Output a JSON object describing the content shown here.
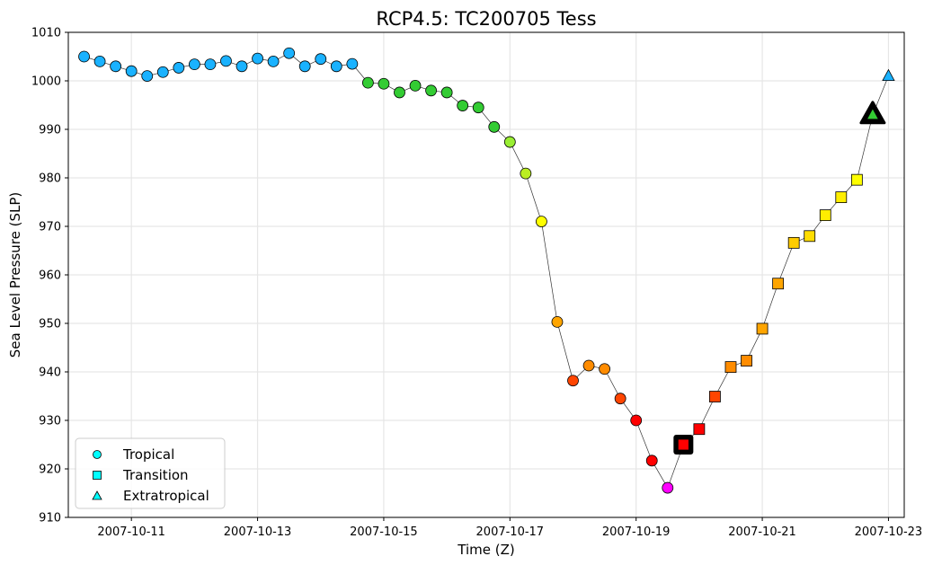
{
  "chart_data": {
    "type": "scatter",
    "title": "RCP4.5: TC200705 Tess",
    "xlabel": "Time (Z)",
    "ylabel": "Sea Level Pressure (SLP)",
    "ylim": [
      910,
      1010
    ],
    "xlim": [
      "2007-10-10 00:00",
      "2007-10-23 06:00"
    ],
    "yticks": [
      910,
      920,
      930,
      940,
      950,
      960,
      970,
      980,
      990,
      1000,
      1010
    ],
    "xticks": [
      "2007-10-11",
      "2007-10-13",
      "2007-10-15",
      "2007-10-17",
      "2007-10-19",
      "2007-10-21",
      "2007-10-23"
    ],
    "grid": true,
    "legend_position": "lower-left",
    "legend": [
      {
        "label": "Tropical",
        "marker": "circle",
        "color": "#00ffff"
      },
      {
        "label": "Transition",
        "marker": "square",
        "color": "#00ffff"
      },
      {
        "label": "Extratropical",
        "marker": "triangle",
        "color": "#00ffff"
      }
    ],
    "points": [
      {
        "t": "2007-10-10 06:00",
        "slp": 1005.0,
        "marker": "circle",
        "color": "#1ab2ff"
      },
      {
        "t": "2007-10-10 12:00",
        "slp": 1004.0,
        "marker": "circle",
        "color": "#1ab2ff"
      },
      {
        "t": "2007-10-10 18:00",
        "slp": 1003.0,
        "marker": "circle",
        "color": "#1ab2ff"
      },
      {
        "t": "2007-10-11 00:00",
        "slp": 1002.0,
        "marker": "circle",
        "color": "#1ab2ff"
      },
      {
        "t": "2007-10-11 06:00",
        "slp": 1001.0,
        "marker": "circle",
        "color": "#1ab2ff"
      },
      {
        "t": "2007-10-11 12:00",
        "slp": 1001.8,
        "marker": "circle",
        "color": "#1ab2ff"
      },
      {
        "t": "2007-10-11 18:00",
        "slp": 1002.7,
        "marker": "circle",
        "color": "#1ab2ff"
      },
      {
        "t": "2007-10-12 00:00",
        "slp": 1003.4,
        "marker": "circle",
        "color": "#1ab2ff"
      },
      {
        "t": "2007-10-12 06:00",
        "slp": 1003.4,
        "marker": "circle",
        "color": "#1ab2ff"
      },
      {
        "t": "2007-10-12 12:00",
        "slp": 1004.1,
        "marker": "circle",
        "color": "#1ab2ff"
      },
      {
        "t": "2007-10-12 18:00",
        "slp": 1003.0,
        "marker": "circle",
        "color": "#1ab2ff"
      },
      {
        "t": "2007-10-13 00:00",
        "slp": 1004.6,
        "marker": "circle",
        "color": "#1ab2ff"
      },
      {
        "t": "2007-10-13 06:00",
        "slp": 1004.0,
        "marker": "circle",
        "color": "#1ab2ff"
      },
      {
        "t": "2007-10-13 12:00",
        "slp": 1005.7,
        "marker": "circle",
        "color": "#1ab2ff"
      },
      {
        "t": "2007-10-13 18:00",
        "slp": 1003.0,
        "marker": "circle",
        "color": "#1ab2ff"
      },
      {
        "t": "2007-10-14 00:00",
        "slp": 1004.5,
        "marker": "circle",
        "color": "#1ab2ff"
      },
      {
        "t": "2007-10-14 06:00",
        "slp": 1003.0,
        "marker": "circle",
        "color": "#1ab2ff"
      },
      {
        "t": "2007-10-14 12:00",
        "slp": 1003.5,
        "marker": "circle",
        "color": "#1ab2ff"
      },
      {
        "t": "2007-10-14 18:00",
        "slp": 999.6,
        "marker": "circle",
        "color": "#33cc33"
      },
      {
        "t": "2007-10-15 00:00",
        "slp": 999.4,
        "marker": "circle",
        "color": "#33cc33"
      },
      {
        "t": "2007-10-15 06:00",
        "slp": 997.6,
        "marker": "circle",
        "color": "#33cc33"
      },
      {
        "t": "2007-10-15 12:00",
        "slp": 999.0,
        "marker": "circle",
        "color": "#33cc33"
      },
      {
        "t": "2007-10-15 18:00",
        "slp": 998.0,
        "marker": "circle",
        "color": "#33cc33"
      },
      {
        "t": "2007-10-16 00:00",
        "slp": 997.6,
        "marker": "circle",
        "color": "#33cc33"
      },
      {
        "t": "2007-10-16 06:00",
        "slp": 994.9,
        "marker": "circle",
        "color": "#33cc33"
      },
      {
        "t": "2007-10-16 12:00",
        "slp": 994.5,
        "marker": "circle",
        "color": "#33cc33"
      },
      {
        "t": "2007-10-16 18:00",
        "slp": 990.5,
        "marker": "circle",
        "color": "#33cc33"
      },
      {
        "t": "2007-10-17 00:00",
        "slp": 987.4,
        "marker": "circle",
        "color": "#99ee33"
      },
      {
        "t": "2007-10-17 06:00",
        "slp": 980.9,
        "marker": "circle",
        "color": "#bbee22"
      },
      {
        "t": "2007-10-17 12:00",
        "slp": 971.0,
        "marker": "circle",
        "color": "#ffff00"
      },
      {
        "t": "2007-10-17 18:00",
        "slp": 950.3,
        "marker": "circle",
        "color": "#ffa500"
      },
      {
        "t": "2007-10-18 00:00",
        "slp": 938.2,
        "marker": "circle",
        "color": "#ff4500"
      },
      {
        "t": "2007-10-18 06:00",
        "slp": 941.3,
        "marker": "circle",
        "color": "#ff8c00"
      },
      {
        "t": "2007-10-18 12:00",
        "slp": 940.6,
        "marker": "circle",
        "color": "#ff8c00"
      },
      {
        "t": "2007-10-18 18:00",
        "slp": 934.5,
        "marker": "circle",
        "color": "#ff4500"
      },
      {
        "t": "2007-10-19 00:00",
        "slp": 930.0,
        "marker": "circle",
        "color": "#ff0000"
      },
      {
        "t": "2007-10-19 06:00",
        "slp": 921.7,
        "marker": "circle",
        "color": "#ff0000"
      },
      {
        "t": "2007-10-19 12:00",
        "slp": 916.1,
        "marker": "circle",
        "color": "#ff00ff"
      },
      {
        "t": "2007-10-19 18:00",
        "slp": 925.0,
        "marker": "square",
        "color": "#ff0000",
        "highlight": true
      },
      {
        "t": "2007-10-20 00:00",
        "slp": 928.2,
        "marker": "square",
        "color": "#ff0000"
      },
      {
        "t": "2007-10-20 06:00",
        "slp": 934.9,
        "marker": "square",
        "color": "#ff4500"
      },
      {
        "t": "2007-10-20 12:00",
        "slp": 941.0,
        "marker": "square",
        "color": "#ff8c00"
      },
      {
        "t": "2007-10-20 18:00",
        "slp": 942.3,
        "marker": "square",
        "color": "#ff8c00"
      },
      {
        "t": "2007-10-21 00:00",
        "slp": 948.9,
        "marker": "square",
        "color": "#ffa500"
      },
      {
        "t": "2007-10-21 06:00",
        "slp": 958.2,
        "marker": "square",
        "color": "#ffa500"
      },
      {
        "t": "2007-10-21 12:00",
        "slp": 966.6,
        "marker": "square",
        "color": "#ffcc00"
      },
      {
        "t": "2007-10-21 18:00",
        "slp": 968.0,
        "marker": "square",
        "color": "#ffdd00"
      },
      {
        "t": "2007-10-22 00:00",
        "slp": 972.3,
        "marker": "square",
        "color": "#ffee00"
      },
      {
        "t": "2007-10-22 06:00",
        "slp": 976.0,
        "marker": "square",
        "color": "#ffee00"
      },
      {
        "t": "2007-10-22 12:00",
        "slp": 979.6,
        "marker": "square",
        "color": "#ffff00"
      },
      {
        "t": "2007-10-22 18:00",
        "slp": 993.0,
        "marker": "triangle",
        "color": "#33cc33",
        "highlight": true
      },
      {
        "t": "2007-10-23 00:00",
        "slp": 1001.0,
        "marker": "triangle",
        "color": "#1ab2ff"
      }
    ]
  }
}
